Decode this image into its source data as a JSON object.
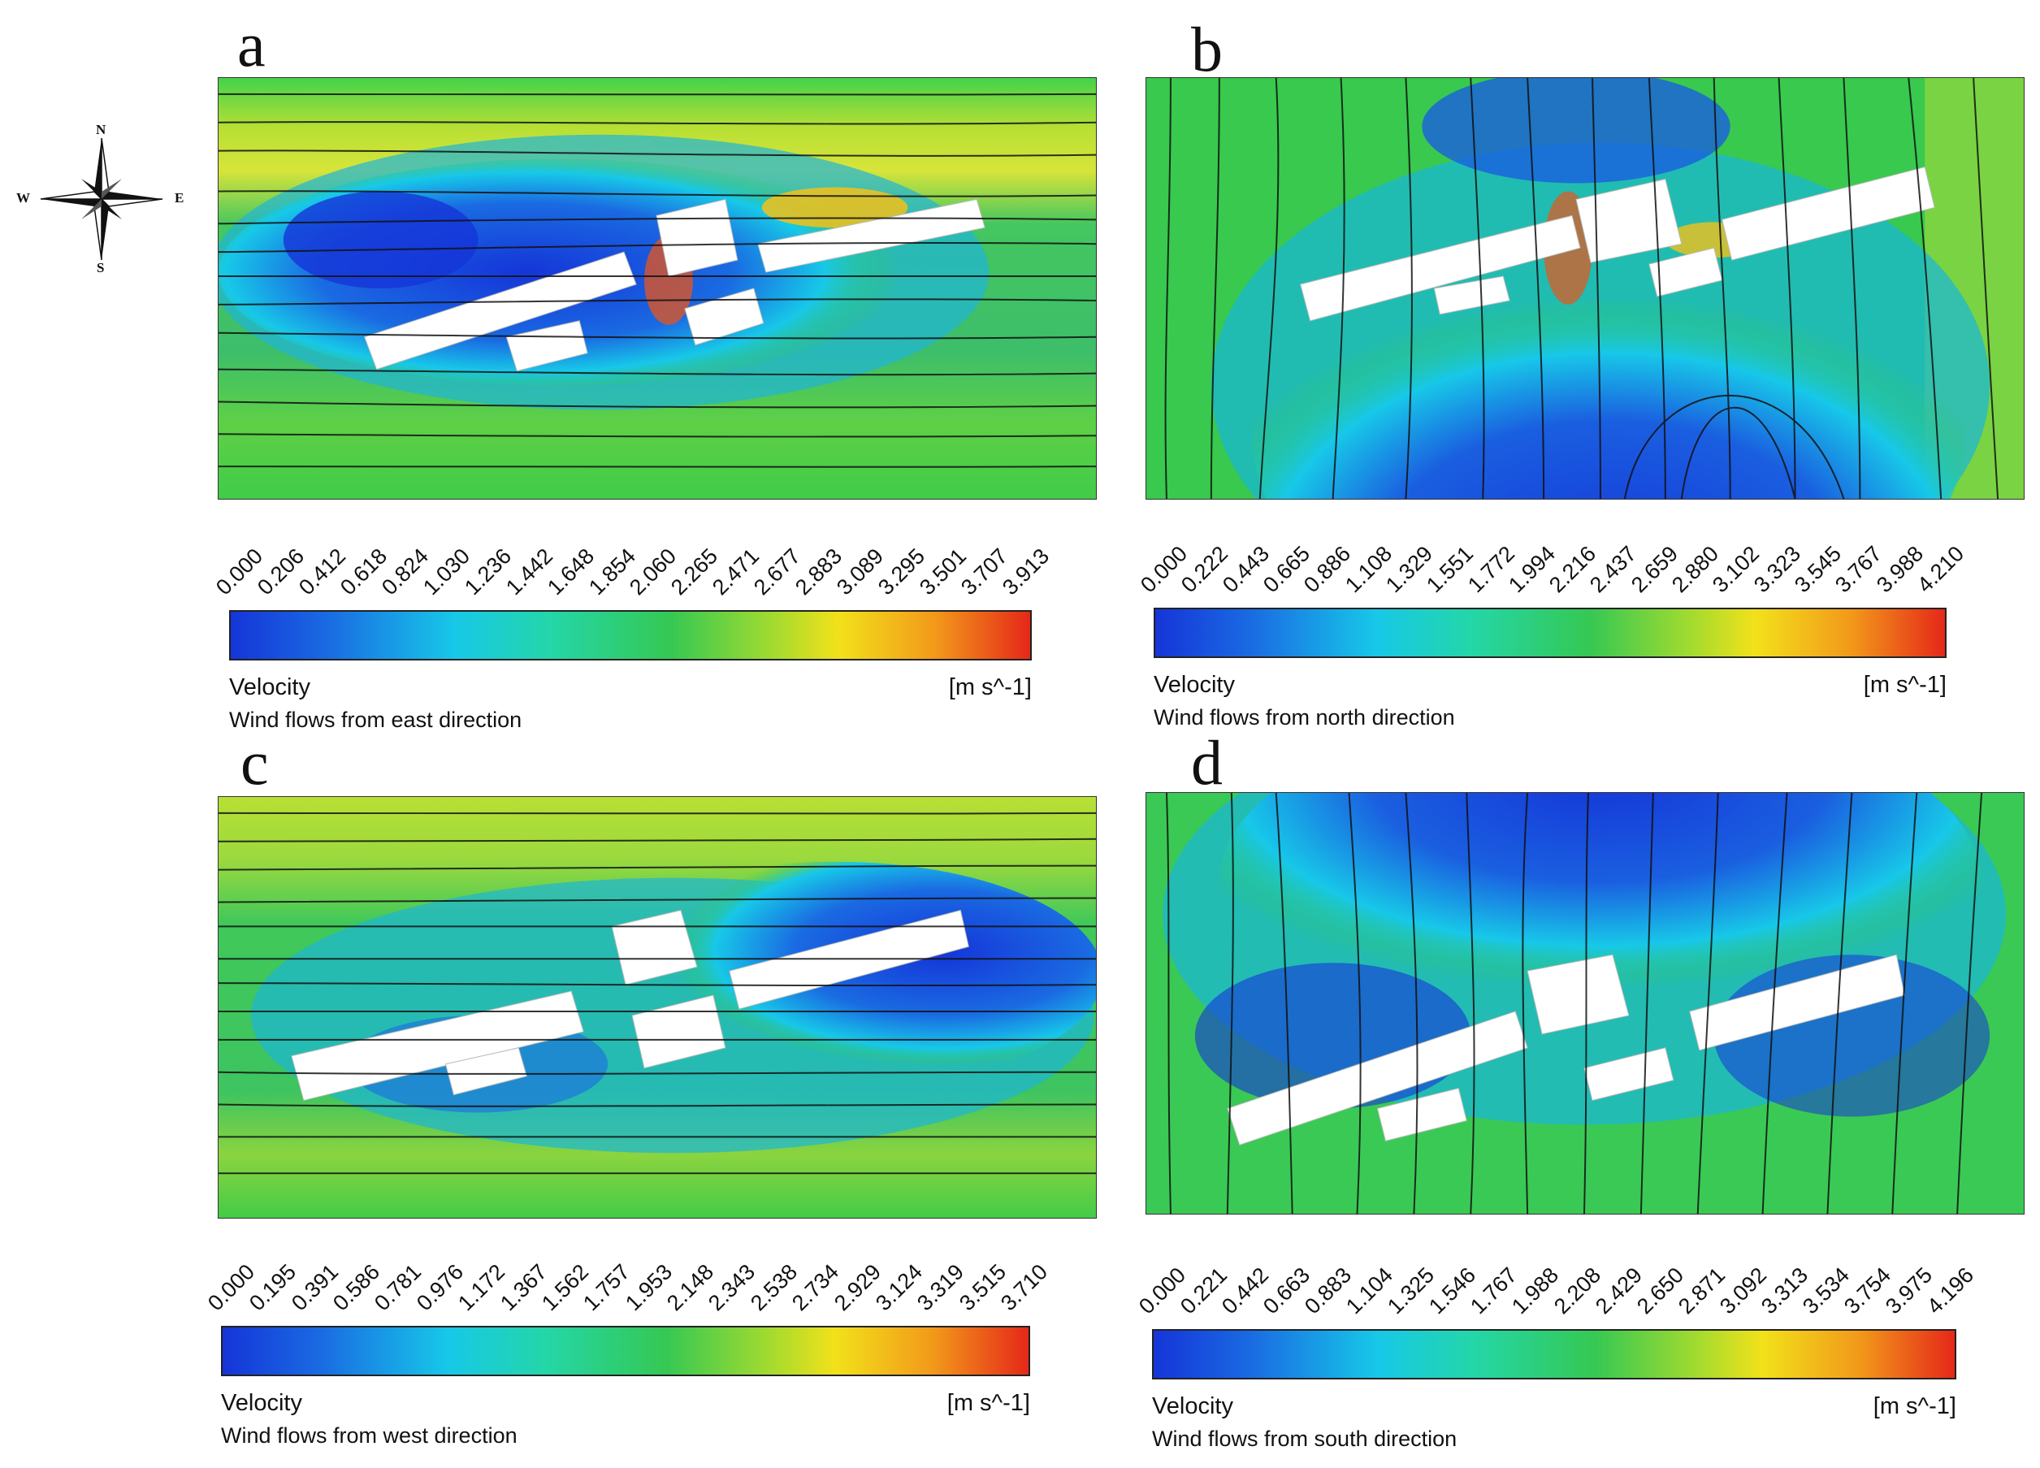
{
  "colors": {
    "low": "#1535d8",
    "cyan": "#17c8e8",
    "mid": "#35c853",
    "yellow": "#f2e11a",
    "high": "#e52819",
    "building": "#ffffff"
  },
  "compass": {
    "n": "N",
    "s": "S",
    "e": "E",
    "w": "W"
  },
  "panels": [
    {
      "letter": "a",
      "velocity_label": "Velocity",
      "unit": "[m s^-1]",
      "caption": "Wind flows from east direction",
      "ticks": [
        "0.000",
        "0.206",
        "0.412",
        "0.618",
        "0.824",
        "1.030",
        "1.236",
        "1.442",
        "1.648",
        "1.854",
        "2.060",
        "2.265",
        "2.471",
        "2.677",
        "2.883",
        "3.089",
        "3.295",
        "3.501",
        "3.707",
        "3.913"
      ]
    },
    {
      "letter": "b",
      "velocity_label": "Velocity",
      "unit": "[m s^-1]",
      "caption": "Wind flows from north direction",
      "ticks": [
        "0.000",
        "0.222",
        "0.443",
        "0.665",
        "0.886",
        "1.108",
        "1.329",
        "1.551",
        "1.772",
        "1.994",
        "2.216",
        "2.437",
        "2.659",
        "2.880",
        "3.102",
        "3.323",
        "3.545",
        "3.767",
        "3.988",
        "4.210"
      ]
    },
    {
      "letter": "c",
      "velocity_label": "Velocity",
      "unit": "[m s^-1]",
      "caption": "Wind flows from west direction",
      "ticks": [
        "0.000",
        "0.195",
        "0.391",
        "0.586",
        "0.781",
        "0.976",
        "1.172",
        "1.367",
        "1.562",
        "1.757",
        "1.953",
        "2.148",
        "2.343",
        "2.538",
        "2.734",
        "2.929",
        "3.124",
        "3.319",
        "3.515",
        "3.710"
      ]
    },
    {
      "letter": "d",
      "velocity_label": "Velocity",
      "unit": "[m s^-1]",
      "caption": "Wind flows from south direction",
      "ticks": [
        "0.000",
        "0.221",
        "0.442",
        "0.663",
        "0.883",
        "1.104",
        "1.325",
        "1.546",
        "1.767",
        "1.988",
        "2.208",
        "2.429",
        "2.650",
        "2.871",
        "3.092",
        "3.313",
        "3.534",
        "3.754",
        "3.975",
        "4.196"
      ]
    }
  ]
}
